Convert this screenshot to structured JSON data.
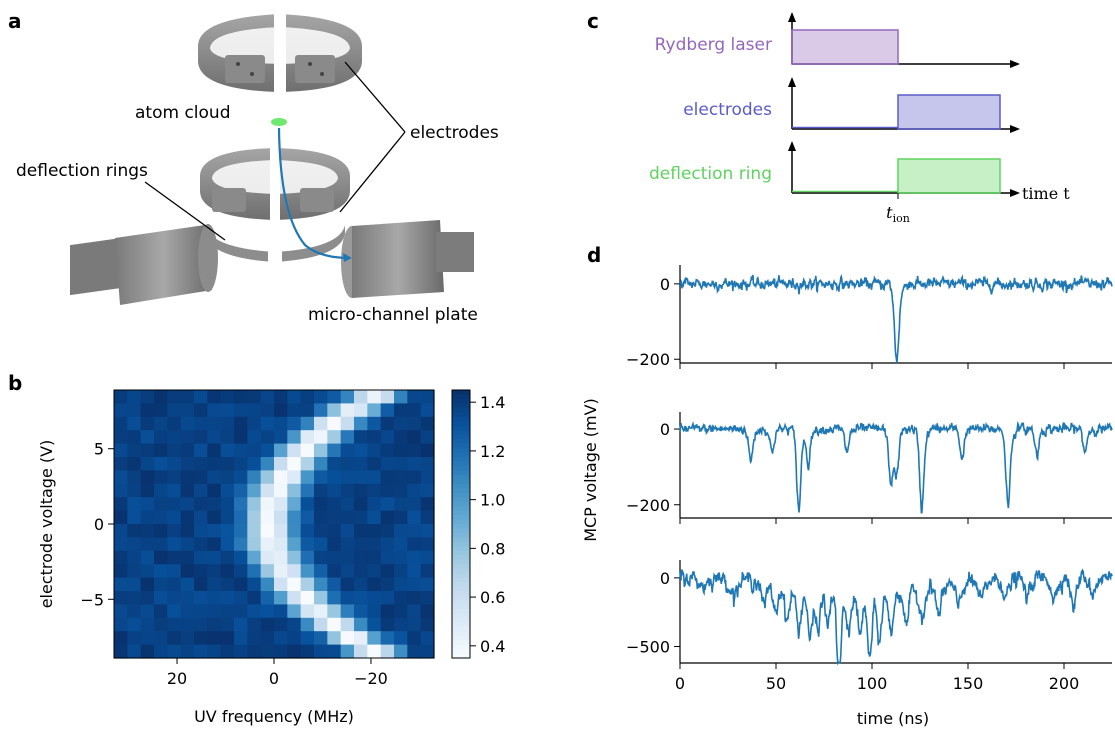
{
  "panel_labels": {
    "a": "a",
    "b": "b",
    "c": "c",
    "d": "d"
  },
  "panel_a": {
    "labels": {
      "atom_cloud": "atom cloud",
      "electrodes": "electrodes",
      "deflection_rings": "deflection rings",
      "mcp": "micro-channel plate"
    },
    "colors": {
      "metal": "#8c8c8c",
      "metal_dark": "#6e6e6e",
      "atom": "#6ee86e",
      "trajectory": "#1f77b4"
    }
  },
  "chart_data": [
    {
      "id": "b",
      "type": "heatmap",
      "xlabel": "UV frequency (MHz)",
      "ylabel": "electrode voltage (V)",
      "xlim": [
        33,
        -33
      ],
      "ylim": [
        -8.9,
        8.9
      ],
      "xticks": [
        20,
        0,
        -20
      ],
      "yticks": [
        -5,
        0,
        5
      ],
      "colorbar_ticks": [
        0.4,
        0.6,
        0.8,
        1.0,
        1.2,
        1.4
      ],
      "colorbar_range": [
        0.35,
        1.45
      ],
      "colormap": "Blues",
      "resonance": {
        "center_at_0V_MHz": 1.0,
        "curvature_MHz_per_V2": 0.3,
        "width_MHz": 3.5,
        "min_value": 0.37,
        "max_value": 1.38
      }
    },
    {
      "id": "c",
      "type": "line",
      "xlabel": "time t",
      "xtick_label": "t_ion",
      "xtick_main": "t",
      "xtick_sub": "ion",
      "series": [
        {
          "name": "Rydberg laser",
          "color": "#9467bd",
          "on": [
            0,
            0.5
          ]
        },
        {
          "name": "electrodes",
          "color": "#5b5bc8",
          "on": [
            0.5,
            1.0
          ]
        },
        {
          "name": "deflection ring",
          "color": "#5fd35f",
          "on": [
            0.5,
            1.0
          ]
        }
      ]
    },
    {
      "id": "d",
      "type": "line",
      "xlabel": "time (ns)",
      "ylabel": "MCP voltage (mV)",
      "xlim": [
        0,
        225
      ],
      "xticks": [
        0,
        50,
        100,
        150,
        200
      ],
      "series_color": "#1f77b4",
      "panels": [
        {
          "ylim": [
            -210,
            50
          ],
          "yticks": [
            0,
            -200
          ],
          "ytick_labels": [
            "0",
            "−200"
          ],
          "noise": 14,
          "pulses": [
            {
              "t": 113,
              "a": -205,
              "w": 1.3
            }
          ]
        },
        {
          "ylim": [
            -235,
            45
          ],
          "yticks": [
            0,
            -200
          ],
          "ytick_labels": [
            "0",
            "−200"
          ],
          "noise": 12,
          "pulses": [
            {
              "t": 37,
              "a": -85,
              "w": 1.2
            },
            {
              "t": 48,
              "a": -60,
              "w": 1.2
            },
            {
              "t": 62,
              "a": -215,
              "w": 1.2
            },
            {
              "t": 67,
              "a": -90,
              "w": 1.1
            },
            {
              "t": 87,
              "a": -60,
              "w": 1.2
            },
            {
              "t": 110,
              "a": -140,
              "w": 1.3
            },
            {
              "t": 113,
              "a": -110,
              "w": 1.2
            },
            {
              "t": 126,
              "a": -215,
              "w": 1.2
            },
            {
              "t": 147,
              "a": -80,
              "w": 1.1
            },
            {
              "t": 171,
              "a": -205,
              "w": 1.2
            },
            {
              "t": 186,
              "a": -70,
              "w": 1.1
            },
            {
              "t": 211,
              "a": -60,
              "w": 1.1
            }
          ]
        },
        {
          "ylim": [
            -620,
            130
          ],
          "yticks": [
            0,
            -500
          ],
          "ytick_labels": [
            "0",
            "−500"
          ],
          "noise": 35,
          "pulses": [
            {
              "t": 12,
              "a": -60,
              "w": 2.0
            },
            {
              "t": 28,
              "a": -110,
              "w": 2.0
            },
            {
              "t": 44,
              "a": -180,
              "w": 1.5
            },
            {
              "t": 50,
              "a": -220,
              "w": 1.4
            },
            {
              "t": 56,
              "a": -270,
              "w": 1.4
            },
            {
              "t": 62,
              "a": -330,
              "w": 1.4
            },
            {
              "t": 68,
              "a": -380,
              "w": 1.4
            },
            {
              "t": 72,
              "a": -300,
              "w": 1.2
            },
            {
              "t": 77,
              "a": -260,
              "w": 1.2
            },
            {
              "t": 83,
              "a": -590,
              "w": 1.3
            },
            {
              "t": 88,
              "a": -300,
              "w": 1.2
            },
            {
              "t": 94,
              "a": -330,
              "w": 1.2
            },
            {
              "t": 99,
              "a": -480,
              "w": 1.3
            },
            {
              "t": 104,
              "a": -350,
              "w": 1.2
            },
            {
              "t": 110,
              "a": -300,
              "w": 1.2
            },
            {
              "t": 118,
              "a": -260,
              "w": 1.2
            },
            {
              "t": 126,
              "a": -200,
              "w": 1.4
            },
            {
              "t": 135,
              "a": -210,
              "w": 1.4
            },
            {
              "t": 145,
              "a": -160,
              "w": 1.5
            },
            {
              "t": 157,
              "a": -150,
              "w": 1.5
            },
            {
              "t": 170,
              "a": -130,
              "w": 1.5
            },
            {
              "t": 181,
              "a": -140,
              "w": 1.5
            },
            {
              "t": 195,
              "a": -160,
              "w": 1.4
            },
            {
              "t": 205,
              "a": -230,
              "w": 1.3
            },
            {
              "t": 215,
              "a": -110,
              "w": 1.5
            }
          ]
        }
      ]
    }
  ]
}
